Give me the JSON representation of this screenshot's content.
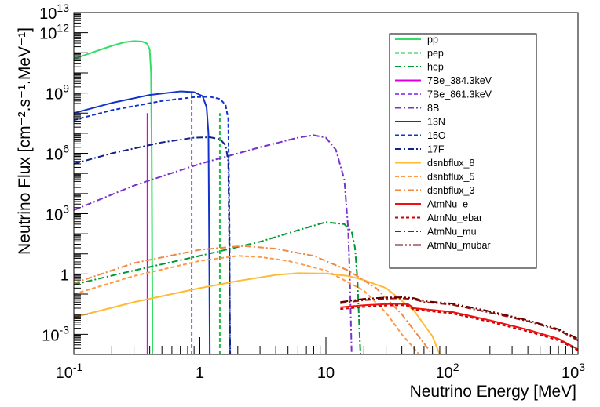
{
  "chart_data": {
    "type": "line",
    "xlabel": "Neutrino Energy [MeV]",
    "ylabel": "Neutrino Flux [cm⁻².s⁻¹.MeV⁻¹]",
    "xscale": "log",
    "yscale": "log",
    "xlim": [
      0.1,
      1000
    ],
    "ylim": [
      0.0001,
      10000000000000
    ],
    "x_ticks": [
      {
        "value": 0.1,
        "base": "10",
        "exp": "-1"
      },
      {
        "value": 1,
        "base": "1",
        "exp": ""
      },
      {
        "value": 10,
        "base": "10",
        "exp": ""
      },
      {
        "value": 100,
        "base": "10",
        "exp": "2"
      },
      {
        "value": 1000,
        "base": "10",
        "exp": "3"
      }
    ],
    "y_ticks": [
      {
        "value": 0.001,
        "base": "10",
        "exp": "-3"
      },
      {
        "value": 1,
        "base": "1",
        "exp": ""
      },
      {
        "value": 1000,
        "base": "10",
        "exp": "3"
      },
      {
        "value": 1000000,
        "base": "10",
        "exp": "6"
      },
      {
        "value": 1000000000,
        "base": "10",
        "exp": "9"
      },
      {
        "value": 1000000000000,
        "base": "10",
        "exp": "12"
      },
      {
        "value": 10000000000000,
        "base": "10",
        "exp": "13"
      }
    ],
    "grid": false,
    "legend_position": "top-right",
    "series": [
      {
        "name": "pp",
        "color": "#33dd66",
        "dash": "solid",
        "x": [
          0.1,
          0.15,
          0.2,
          0.25,
          0.3,
          0.35,
          0.38,
          0.4,
          0.41,
          0.415,
          0.42,
          0.42
        ],
        "y": [
          50000000000.0,
          120000000000.0,
          220000000000.0,
          330000000000.0,
          380000000000.0,
          360000000000.0,
          290000000000.0,
          150000000000.0,
          10000000000.0,
          1000000.0,
          0.01,
          0.0001
        ]
      },
      {
        "name": "pep",
        "color": "#22bb44",
        "dash": "5,3",
        "x": [
          1.44,
          1.44,
          1.44
        ],
        "y": [
          0.0001,
          100000000.0,
          100000000.0
        ]
      },
      {
        "name": "hep",
        "color": "#009933",
        "dash": "8,3,2,3",
        "x": [
          0.1,
          0.3,
          1,
          3,
          6,
          10,
          14,
          16,
          17,
          17.8,
          18.5,
          18.8
        ],
        "y": [
          0.3,
          1.5,
          8,
          40,
          150,
          380,
          300,
          130,
          20,
          0.5,
          0.001,
          0.0001
        ]
      },
      {
        "name": "7Be_384.3keV",
        "color": "#dd00dd",
        "dash": "solid",
        "x": [
          0.3843,
          0.3843,
          0.3843
        ],
        "y": [
          0.0001,
          100000000.0,
          100000000.0
        ]
      },
      {
        "name": "7Be_861.3keV",
        "color": "#9955ee",
        "dash": "5,3",
        "x": [
          0.8613,
          0.8613,
          0.8613
        ],
        "y": [
          0.0001,
          1000000000.0,
          1000000000.0
        ]
      },
      {
        "name": "8B",
        "color": "#7733cc",
        "dash": "8,3,2,3",
        "x": [
          0.1,
          0.3,
          1,
          3,
          6,
          8,
          10,
          12,
          14,
          15,
          15.5,
          16
        ],
        "y": [
          1500,
          25000,
          300000.0,
          2000000.0,
          6000000.0,
          8000000.0,
          6000000.0,
          1500000.0,
          50000,
          200,
          0.5,
          0.0001
        ]
      },
      {
        "name": "13N",
        "color": "#1133cc",
        "dash": "solid",
        "x": [
          0.1,
          0.2,
          0.4,
          0.7,
          0.9,
          1.05,
          1.13,
          1.17,
          1.19,
          1.199
        ],
        "y": [
          100000000.0,
          320000000.0,
          800000000.0,
          1200000000.0,
          1100000000.0,
          700000000.0,
          200000000.0,
          10000000.0,
          1,
          0.0001
        ]
      },
      {
        "name": "15O",
        "color": "#1133cc",
        "dash": "5,3",
        "x": [
          0.1,
          0.2,
          0.5,
          0.9,
          1.2,
          1.45,
          1.6,
          1.68,
          1.72,
          1.732
        ],
        "y": [
          45000000.0,
          140000000.0,
          400000000.0,
          620000000.0,
          650000000.0,
          500000000.0,
          250000000.0,
          50000000.0,
          100,
          0.0001
        ]
      },
      {
        "name": "17F",
        "color": "#112288",
        "dash": "8,3,2,3",
        "x": [
          0.1,
          0.2,
          0.5,
          0.9,
          1.2,
          1.45,
          1.6,
          1.68,
          1.72,
          1.74
        ],
        "y": [
          300000.0,
          1000000.0,
          3500000.0,
          6000000.0,
          6300000.0,
          5000000.0,
          2500000.0,
          400000.0,
          1,
          0.0001
        ]
      },
      {
        "name": "dsnbflux_8",
        "color": "#ffbb33",
        "dash": "solid",
        "x": [
          0.1,
          0.3,
          1,
          2,
          4,
          6,
          10,
          15,
          20,
          30,
          50,
          70,
          80
        ],
        "y": [
          0.007,
          0.04,
          0.2,
          0.45,
          0.9,
          1.1,
          1.05,
          0.8,
          0.5,
          0.2,
          0.015,
          0.0008,
          0.0001
        ]
      },
      {
        "name": "dsnbflux_5",
        "color": "#ff9944",
        "dash": "5,3",
        "x": [
          0.1,
          0.3,
          1,
          2,
          3,
          5,
          10,
          20,
          30,
          40,
          55
        ],
        "y": [
          0.1,
          0.8,
          4.5,
          8,
          7,
          4.5,
          1.5,
          0.15,
          0.012,
          0.001,
          0.0001
        ]
      },
      {
        "name": "dsnbflux_3",
        "color": "#ee8844",
        "dash": "8,3,2,3",
        "x": [
          0.1,
          0.3,
          1,
          2.2,
          4,
          8,
          15,
          25,
          40,
          70
        ],
        "y": [
          0.35,
          3.5,
          16,
          25,
          18,
          8,
          1.5,
          0.2,
          0.01,
          0.0001
        ]
      },
      {
        "name": "AtmNu_e",
        "color": "#ee1111",
        "dash": "solid",
        "x": [
          13,
          20,
          30,
          40,
          45,
          50,
          100,
          200,
          400,
          700,
          1000
        ],
        "y": [
          0.022,
          0.028,
          0.032,
          0.033,
          0.031,
          0.02,
          0.013,
          0.005,
          0.0017,
          0.0006,
          0.00018
        ]
      },
      {
        "name": "AtmNu_ebar",
        "color": "#cc0000",
        "dash": "4,3",
        "x": [
          13,
          20,
          30,
          40,
          45,
          50,
          100,
          200,
          400,
          700,
          1000
        ],
        "y": [
          0.018,
          0.023,
          0.027,
          0.028,
          0.026,
          0.017,
          0.011,
          0.0042,
          0.0014,
          0.0005,
          0.00016
        ]
      },
      {
        "name": "AtmNu_mu",
        "color": "#991111",
        "dash": "8,3,2,3",
        "x": [
          13,
          20,
          30,
          40,
          50,
          60,
          100,
          200,
          400,
          700,
          1000
        ],
        "y": [
          0.035,
          0.05,
          0.06,
          0.062,
          0.055,
          0.04,
          0.03,
          0.012,
          0.0045,
          0.0016,
          0.0005
        ]
      },
      {
        "name": "AtmNu_mubar",
        "color": "#660000",
        "dash": "10,3,2,3,2,3",
        "x": [
          13,
          20,
          30,
          40,
          50,
          60,
          100,
          200,
          400,
          700,
          1000
        ],
        "y": [
          0.04,
          0.058,
          0.068,
          0.07,
          0.063,
          0.045,
          0.034,
          0.014,
          0.005,
          0.0018,
          0.0006
        ]
      }
    ]
  }
}
